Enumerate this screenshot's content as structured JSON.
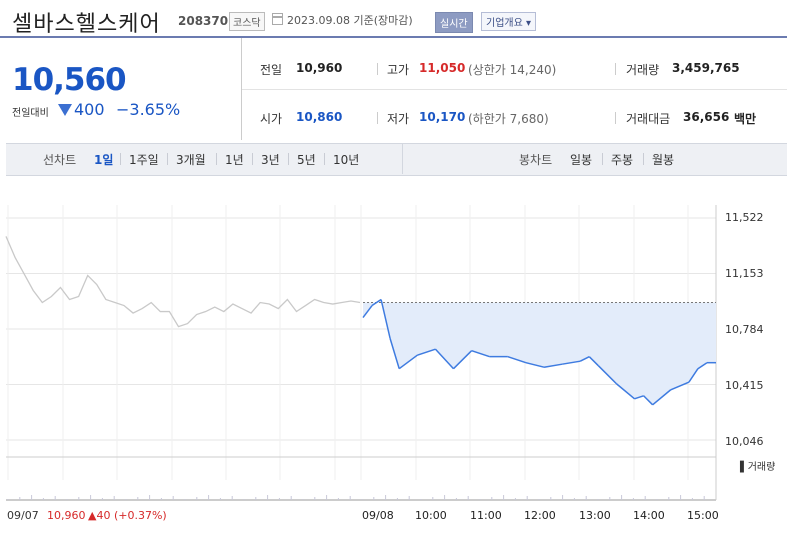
{
  "header": {
    "company": "셀바스헬스케어",
    "code": "208370",
    "market": "코스닥",
    "date_text": "2023.09.08 기준(장마감)",
    "realtime_label": "실시간",
    "company_info_label": "기업개요 ▾"
  },
  "quote": {
    "price": "10,560",
    "change_label": "전일대비",
    "change": "400",
    "change_pct": "−3.65%",
    "direction_color": "#1a56c4"
  },
  "stats": {
    "prev_label": "전일",
    "prev": "10,960",
    "high_label": "고가",
    "high": "11,050",
    "upper_limit": "(상한가 14,240)",
    "volume_label": "거래량",
    "volume": "3,459,765",
    "open_label": "시가",
    "open": "10,860",
    "low_label": "저가",
    "low": "10,170",
    "lower_limit": "(하한가 7,680)",
    "amount_label": "거래대금",
    "amount": "36,656",
    "amount_unit": "백만"
  },
  "period_tabs": {
    "line_label": "선차트",
    "line_items": [
      "1일",
      "1주일",
      "3개월",
      "1년",
      "3년",
      "5년",
      "10년"
    ],
    "active": "1일",
    "candle_label": "봉차트",
    "candle_items": [
      "일봉",
      "주봉",
      "월봉"
    ]
  },
  "chart_data": {
    "type": "line",
    "y_ticks": [
      "11,522",
      "11,153",
      "10,784",
      "10,415",
      "10,046"
    ],
    "ylim": [
      10046,
      11522
    ],
    "x_ticks": [
      "09/07",
      "09/08",
      "10:00",
      "11:00",
      "12:00",
      "13:00",
      "14:00",
      "15:00"
    ],
    "reference_price": 10960,
    "volume_label": "거래량",
    "prev_day": {
      "date": "09/07",
      "close": "10,960",
      "change": "▲40 (+0.37%)"
    },
    "series": [
      {
        "x": [
          "09:00",
          "09:10",
          "09:20",
          "09:30",
          "09:40",
          "10:00",
          "10:20",
          "10:40",
          "11:00",
          "11:20",
          "11:40",
          "12:00",
          "12:20",
          "12:40",
          "13:00",
          "13:10",
          "13:20",
          "13:40",
          "14:00",
          "14:10",
          "14:20",
          "14:40",
          "15:00",
          "15:10",
          "15:20",
          "15:30"
        ],
        "values": [
          10860,
          10940,
          10980,
          10720,
          10520,
          10610,
          10650,
          10520,
          10640,
          10600,
          10600,
          10560,
          10530,
          10550,
          10570,
          10600,
          10540,
          10420,
          10320,
          10340,
          10280,
          10380,
          10430,
          10520,
          10560,
          10560
        ]
      }
    ],
    "prev_series": {
      "values": [
        11400,
        11260,
        11150,
        11040,
        10960,
        11000,
        11060,
        10980,
        11000,
        11140,
        11080,
        10980,
        10960,
        10940,
        10890,
        10920,
        10960,
        10900,
        10900,
        10800,
        10820,
        10880,
        10900,
        10930,
        10900,
        10950,
        10920,
        10890,
        10960,
        10950,
        10920,
        10980,
        10900,
        10940,
        10980,
        10960,
        10950,
        10960,
        10970,
        10960
      ]
    }
  }
}
